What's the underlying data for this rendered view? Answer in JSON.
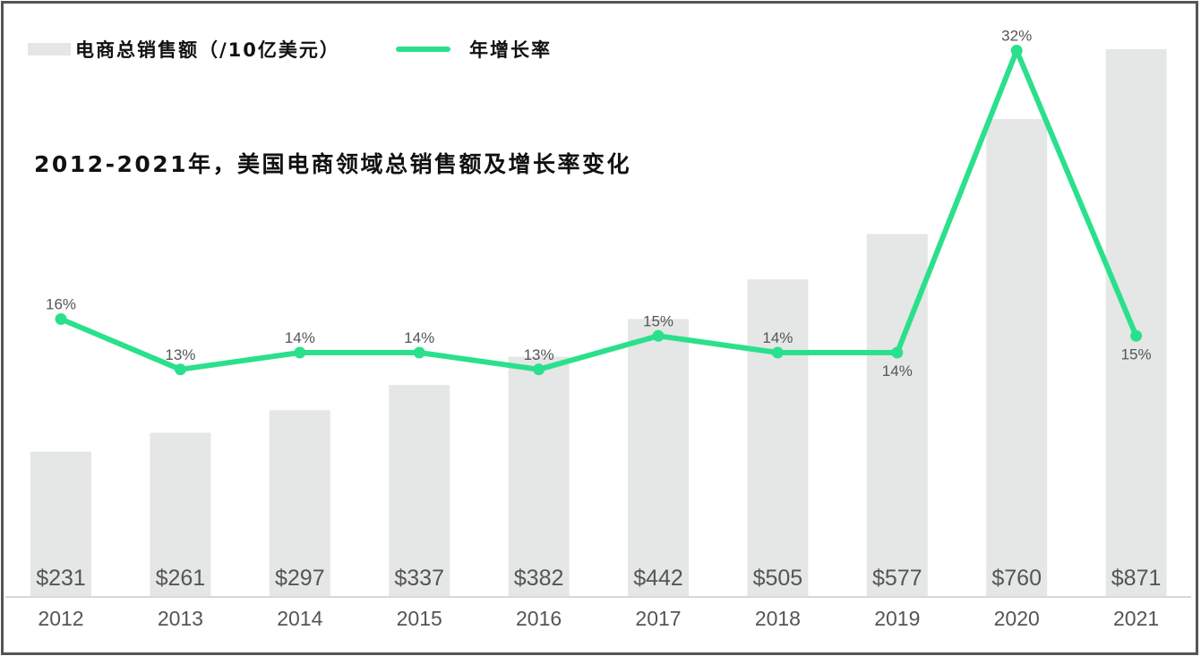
{
  "chart_data": {
    "type": "bar",
    "title": "2012-2021年，美国电商领域总销售额及增长率变化",
    "categories": [
      "2012",
      "2013",
      "2014",
      "2015",
      "2016",
      "2017",
      "2018",
      "2019",
      "2020",
      "2021"
    ],
    "series": [
      {
        "name": "电商总销售额（/10亿美元）",
        "type": "bar",
        "values": [
          231,
          261,
          297,
          337,
          382,
          442,
          505,
          577,
          760,
          871
        ],
        "labels": [
          "$231",
          "$261",
          "$297",
          "$337",
          "$382",
          "$442",
          "$505",
          "$577",
          "$760",
          "$871"
        ]
      },
      {
        "name": "年增长率",
        "type": "line",
        "values": [
          16,
          13,
          14,
          14,
          13,
          15,
          14,
          14,
          32,
          15
        ],
        "labels": [
          "16%",
          "13%",
          "14%",
          "14%",
          "13%",
          "15%",
          "14%",
          "14%",
          "32%",
          "15%"
        ]
      }
    ],
    "legend_position": "top-left",
    "grid": false,
    "colors": {
      "bar": "#e5e6e6",
      "line": "#2be08c",
      "text": "#555555",
      "axis": "#d8d8d8"
    }
  }
}
